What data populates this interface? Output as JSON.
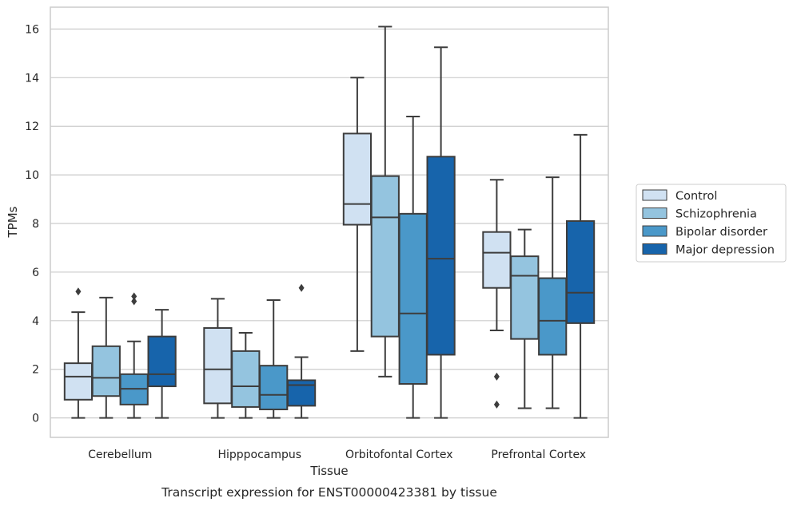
{
  "chart_data": {
    "type": "boxplot",
    "caption": "Transcript expression for ENST00000423381 by tissue",
    "xlabel": "Tissue",
    "ylabel": "TPMs",
    "ylim": [
      -0.8,
      16.9
    ],
    "yticks": [
      0,
      2,
      4,
      6,
      8,
      10,
      12,
      14,
      16
    ],
    "grid": "horizontal",
    "legend_position": "right",
    "categories": [
      "Cerebellum",
      "Hipppocampus",
      "Orbitofontal Cortex",
      "Prefrontal Cortex"
    ],
    "series": [
      {
        "name": "Control",
        "color": "#d0e1f2",
        "boxes": [
          {
            "min": 0,
            "q1": 0.75,
            "median": 1.7,
            "q3": 2.25,
            "max": 4.35,
            "outliers": [
              5.2
            ]
          },
          {
            "min": 0,
            "q1": 0.6,
            "median": 2.0,
            "q3": 3.7,
            "max": 4.9,
            "outliers": []
          },
          {
            "min": 2.75,
            "q1": 7.95,
            "median": 8.8,
            "q3": 11.7,
            "max": 14.0,
            "outliers": []
          },
          {
            "min": 3.6,
            "q1": 5.35,
            "median": 6.8,
            "q3": 7.65,
            "max": 9.8,
            "outliers": [
              1.7,
              0.55
            ]
          }
        ]
      },
      {
        "name": "Schizophrenia",
        "color": "#94c4df",
        "boxes": [
          {
            "min": 0,
            "q1": 0.9,
            "median": 1.65,
            "q3": 2.95,
            "max": 4.95,
            "outliers": []
          },
          {
            "min": 0,
            "q1": 0.45,
            "median": 1.3,
            "q3": 2.75,
            "max": 3.5,
            "outliers": []
          },
          {
            "min": 1.7,
            "q1": 3.35,
            "median": 8.25,
            "q3": 9.95,
            "max": 16.1,
            "outliers": []
          },
          {
            "min": 0.4,
            "q1": 3.25,
            "median": 5.85,
            "q3": 6.65,
            "max": 7.75,
            "outliers": []
          }
        ]
      },
      {
        "name": "Bipolar disorder",
        "color": "#4a98c9",
        "boxes": [
          {
            "min": 0,
            "q1": 0.55,
            "median": 1.2,
            "q3": 1.8,
            "max": 3.15,
            "outliers": [
              4.8,
              5.0
            ]
          },
          {
            "min": 0,
            "q1": 0.35,
            "median": 0.95,
            "q3": 2.15,
            "max": 4.85,
            "outliers": []
          },
          {
            "min": 0,
            "q1": 1.4,
            "median": 4.3,
            "q3": 8.4,
            "max": 12.4,
            "outliers": []
          },
          {
            "min": 0.4,
            "q1": 2.6,
            "median": 4.0,
            "q3": 5.75,
            "max": 9.9,
            "outliers": []
          }
        ]
      },
      {
        "name": "Major depression",
        "color": "#1764ab",
        "boxes": [
          {
            "min": 0,
            "q1": 1.3,
            "median": 1.8,
            "q3": 3.35,
            "max": 4.45,
            "outliers": []
          },
          {
            "min": 0,
            "q1": 0.5,
            "median": 1.35,
            "q3": 1.55,
            "max": 2.5,
            "outliers": [
              5.35
            ]
          },
          {
            "min": 0,
            "q1": 2.6,
            "median": 6.55,
            "q3": 10.75,
            "max": 15.25,
            "outliers": []
          },
          {
            "min": 0,
            "q1": 3.9,
            "median": 5.15,
            "q3": 8.1,
            "max": 11.65,
            "outliers": []
          }
        ]
      }
    ]
  }
}
